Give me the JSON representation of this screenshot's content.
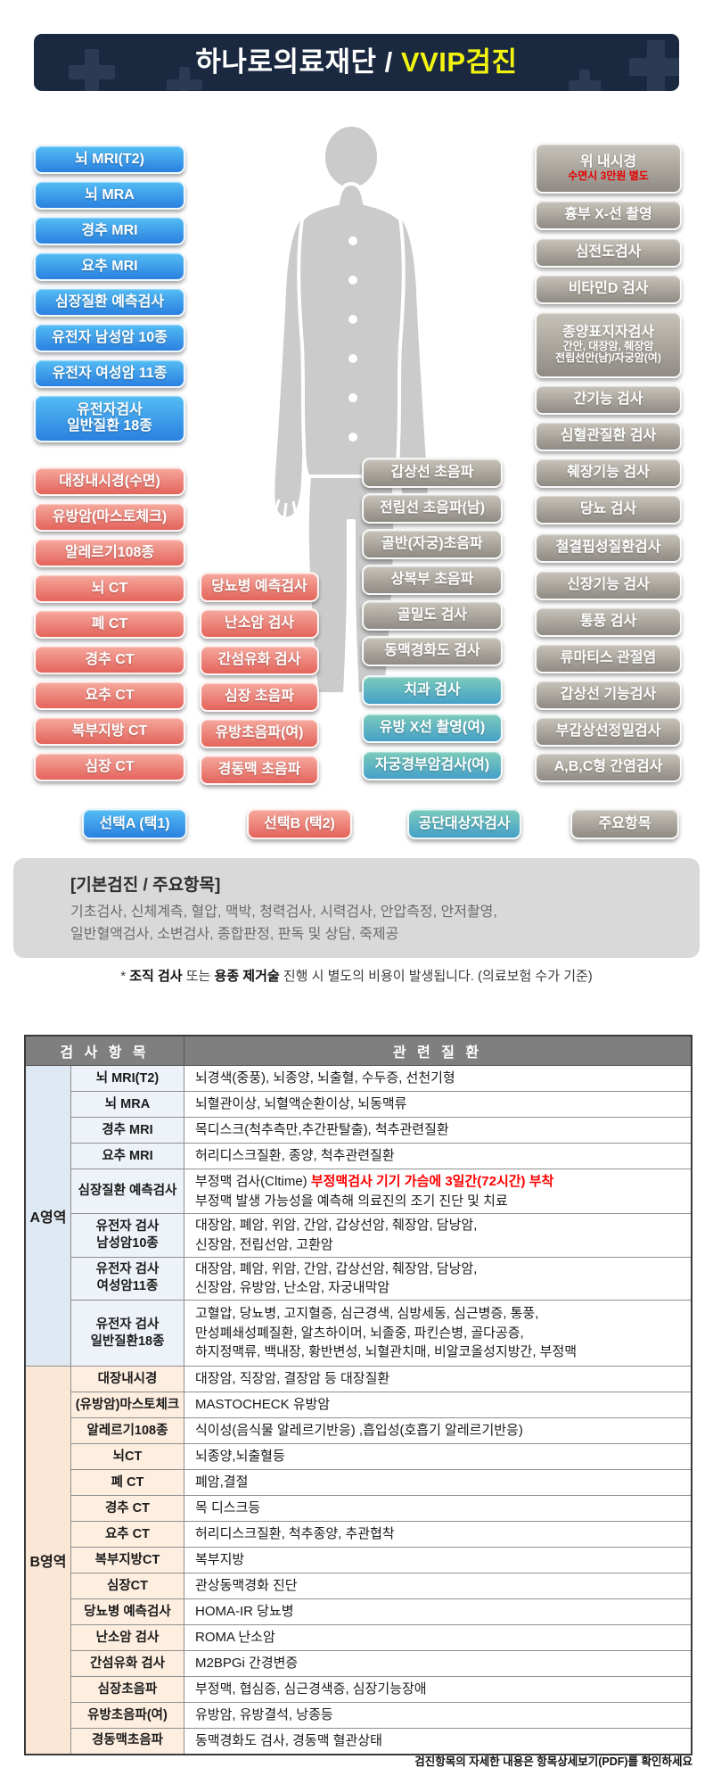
{
  "header": {
    "title_main": "하나로의료재단 / ",
    "title_accent": "VVIP검진"
  },
  "colors": {
    "banner_navy": "#1b2940",
    "accent_yellow": "#f2f410",
    "select_a_blue": "#2a80e0",
    "select_b_red": "#e4645b",
    "public_teal": "#45a0c8",
    "major_gray": "#8f8b84",
    "alert_red": "#e60000"
  },
  "pills": {
    "left_blue": [
      "뇌 MRI(T2)",
      "뇌 MRA",
      "경추 MRI",
      "요추 MRI",
      "심장질환 예측검사",
      "유전자 남성암 10종",
      "유전자 여성암 11종",
      {
        "lines": [
          "유전자검사",
          "일반질환 18종"
        ]
      }
    ],
    "left_red": [
      "대장내시경(수면)",
      "유방암(마스토체크)",
      "알레르기108종",
      "뇌 CT",
      "폐 CT",
      "경추 CT",
      "요추 CT",
      "복부지방 CT",
      "심장 CT"
    ],
    "mid_red": [
      "당뇨병 예측검사",
      "난소암 검사",
      "간섬유화 검사",
      "심장 초음파",
      "유방초음파(여)",
      "경동맥 초음파"
    ],
    "mid_gray": [
      "갑상선 초음파",
      "전립선 초음파(남)",
      "골반(자궁)초음파",
      "상복부 초음파",
      "골밀도 검사",
      "동맥경화도 검사"
    ],
    "mid_teal": [
      "치과 검사",
      "유방 X선 촬영(여)",
      "자궁경부암검사(여)"
    ],
    "right_gray": [
      {
        "main": "위 내시경",
        "sub": "수면시 3만원 별도",
        "sub_style": "red-sub"
      },
      "흉부 X-선 촬영",
      "심전도검사",
      "비타민D 검사",
      {
        "main": "종양표지자검사",
        "subs": [
          "간안, 대장암, 췌장암",
          "전립선안(남)/자궁암(여)"
        ]
      },
      "간기능 검사",
      "심혈관질환 검사",
      "췌장기능 검사",
      "당뇨 검사",
      "철결핍성질환검사",
      "신장기능 검사",
      "통풍 검사",
      "류마티스 관절염",
      "갑상선 기능검사",
      "부갑상선정밀검사",
      "A,B,C형 간염검사"
    ]
  },
  "legend": [
    {
      "label": "선택A (택1)",
      "style": "blue"
    },
    {
      "label": "선택B (택2)",
      "style": "red"
    },
    {
      "label": "공단대상자검사",
      "style": "teal"
    },
    {
      "label": "주요항목",
      "style": "gray"
    }
  ],
  "info_box": {
    "title": "[기본검진 / 주요항목]",
    "line1": "기초검사, 신체계측, 혈압, 맥박, 청력검사, 시력검사, 안압측정, 안저촬영,",
    "line2": "일반혈액검사, 소변검사, 종합판정, 판독 및 상담, 죽제공"
  },
  "note": {
    "prefix": "* ",
    "bold1": "조직 검사",
    "mid": " 또는 ",
    "bold2": "용종 제거술",
    "rest": " 진행 시 별도의 비용이 발생됩니다. (의료보험 수가 기준)"
  },
  "table": {
    "header": [
      "검 사 항 목",
      "관 련 질 환"
    ],
    "sections": [
      {
        "label": "A영역",
        "style": "a",
        "rows": [
          {
            "item": "뇌 MRI(T2)",
            "related": "뇌경색(중풍), 뇌종양, 뇌출혈, 수두증, 선천기형"
          },
          {
            "item": "뇌 MRA",
            "related": "뇌혈관이상, 뇌혈액순환이상, 뇌동맥류"
          },
          {
            "item": "경추 MRI",
            "related": "목디스크(척추측만,추간판탈출), 척추관련질환"
          },
          {
            "item": "요추 MRI",
            "related": "허리디스크질환, 종양, 척추관련질환"
          },
          {
            "item": "심장질환 예측검사",
            "related_parts": {
              "prefix": "부정맥 검사(Cltime) ",
              "red": "부정맥검사 기기 가슴에 3일간(72시간) 부착",
              "line2": "부정맥 발생 가능성을 예측해 의료진의 조기 진단 및 치료"
            }
          },
          {
            "item": "유전자 검사\n남성암10종",
            "related": "대장암, 폐암, 위암, 간암, 갑상선암, 췌장암, 담낭암,\n신장암, 전립선암, 고환암"
          },
          {
            "item": "유전자 검사\n여성암11종",
            "related": "대장암, 폐암, 위암, 간암, 갑상선암, 췌장암, 담낭암,\n신장암, 유방암, 난소암, 자궁내막암"
          },
          {
            "item": "유전자 검사\n일반질환18종",
            "related": "고혈압, 당뇨병, 고지혈증, 심근경색, 심방세동, 심근병증, 통풍,\n만성폐쇄성폐질환, 알츠하이머, 뇌졸중, 파킨슨병, 골다공증,\n하지정맥류, 백내장, 황반변성, 뇌혈관치매, 비알코올성지방간, 부정맥"
          }
        ]
      },
      {
        "label": "B영역",
        "style": "b",
        "rows": [
          {
            "item": "대장내시경",
            "related": "대장암, 직장암, 결장암 등 대장질환"
          },
          {
            "item": "(유방암)마스토체크",
            "related": "MASTOCHECK 유방암"
          },
          {
            "item": "알레르기108종",
            "related": "식이성(음식물 알레르기반응) ,흡입성(호흡기 알레르기반응)"
          },
          {
            "item": "뇌CT",
            "related": "뇌종양,뇌출혈등"
          },
          {
            "item": "폐 CT",
            "related": "폐암,결절"
          },
          {
            "item": "경추 CT",
            "related": "목 디스크등"
          },
          {
            "item": "요추 CT",
            "related": "허리디스크질환, 척추종양, 추관협착"
          },
          {
            "item": "복부지방CT",
            "related": "복부지방"
          },
          {
            "item": "심장CT",
            "related": "관상동맥경화 진단"
          },
          {
            "item": "당뇨병 예측검사",
            "related": "HOMA-IR 당뇨병"
          },
          {
            "item": "난소암 검사",
            "related": "ROMA 난소암"
          },
          {
            "item": "간섬유화 검사",
            "related": "M2BPGi 간경변증"
          },
          {
            "item": "심장초음파",
            "related": "부정맥, 협심증, 심근경색증, 심장기능장애"
          },
          {
            "item": "유방초음파(여)",
            "related": "유방암, 유방결석, 낭종등"
          },
          {
            "item": "경동맥초음파",
            "related": "동맥경화도 검사, 경동맥 혈관상태"
          }
        ]
      }
    ],
    "footer_note": "검진항목의 자세한 내용은 항목상세보기(PDF)를 확인하세요"
  }
}
